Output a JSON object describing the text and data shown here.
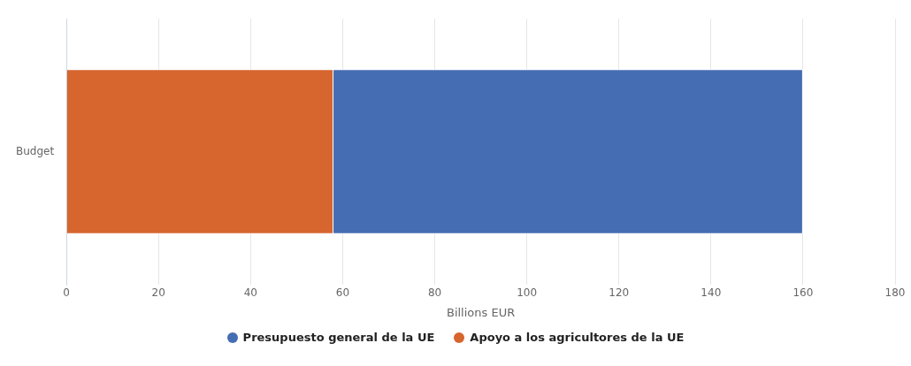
{
  "chart_data": {
    "type": "bar",
    "orientation": "horizontal",
    "stacked": true,
    "categories": [
      "Budget"
    ],
    "series": [
      {
        "name": "Apoyo a los agricultores de la UE",
        "color": "#d6652e",
        "values": [
          58
        ]
      },
      {
        "name": "Presupuesto general de la UE",
        "color": "#456db3",
        "values": [
          102
        ]
      }
    ],
    "xlabel": "Billions EUR",
    "xlim": [
      0,
      180
    ],
    "xticks": [
      0,
      20,
      40,
      60,
      80,
      100,
      120,
      140,
      160,
      180
    ],
    "grid": "x",
    "legend": "bottom"
  }
}
